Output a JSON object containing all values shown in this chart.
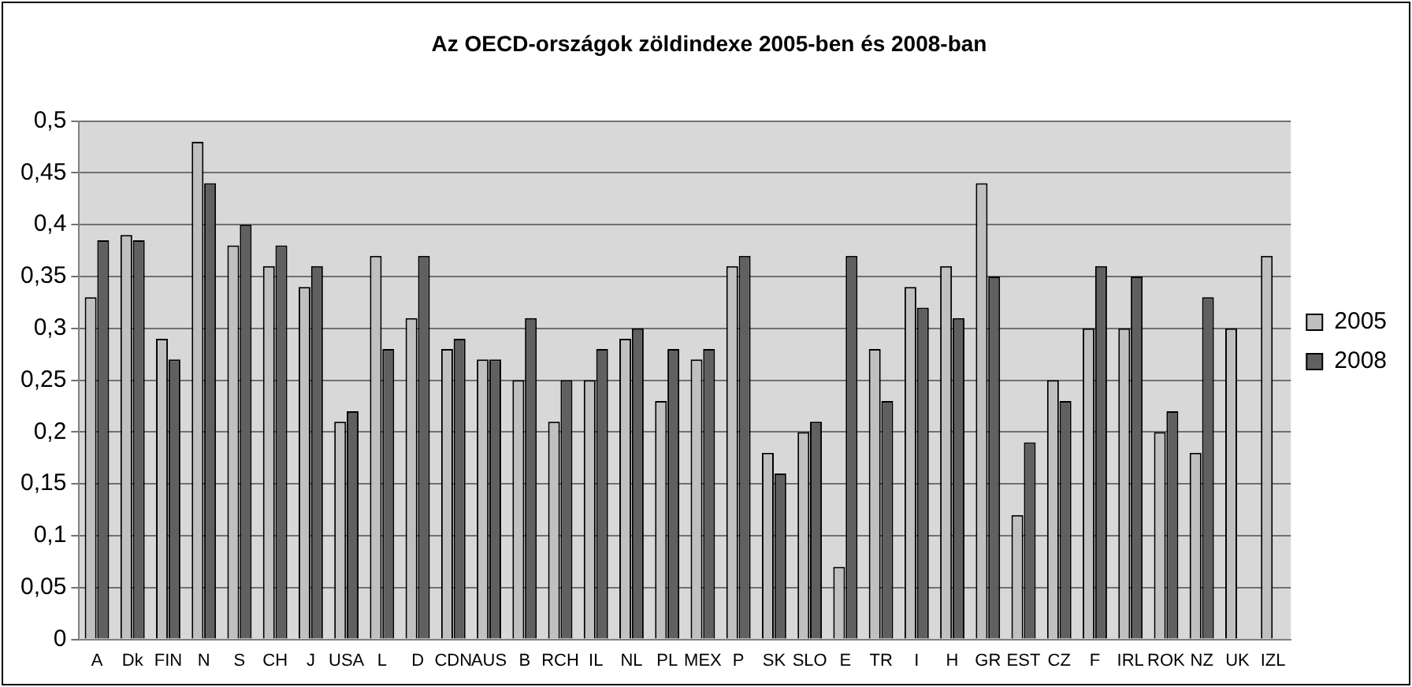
{
  "chart_data": {
    "type": "bar",
    "title": "Az OECD-országok zöldindexe 2005-ben és 2008-ban",
    "categories": [
      "A",
      "Dk",
      "FIN",
      "N",
      "S",
      "CH",
      "J",
      "USA",
      "L",
      "D",
      "CDN",
      "AUS",
      "B",
      "RCH",
      "IL",
      "NL",
      "PL",
      "MEX",
      "P",
      "SK",
      "SLO",
      "E",
      "TR",
      "I",
      "H",
      "GR",
      "EST",
      "CZ",
      "F",
      "IRL",
      "ROK",
      "NZ",
      "UK",
      "IZL"
    ],
    "series": [
      {
        "name": "2005",
        "color": "#c0c0c0",
        "values": [
          0.33,
          0.39,
          0.29,
          0.48,
          0.38,
          0.36,
          0.34,
          0.21,
          0.37,
          0.31,
          0.28,
          0.27,
          0.25,
          0.21,
          0.25,
          0.29,
          0.23,
          0.27,
          0.36,
          0.18,
          0.2,
          0.07,
          0.28,
          0.34,
          0.36,
          0.44,
          0.12,
          0.25,
          0.3,
          0.3,
          0.2,
          0.18,
          0.3,
          0.37
        ]
      },
      {
        "name": "2008",
        "color": "#606060",
        "values": [
          0.385,
          0.385,
          0.27,
          0.44,
          0.4,
          0.38,
          0.36,
          0.22,
          0.28,
          0.37,
          0.29,
          0.27,
          0.31,
          0.25,
          0.28,
          0.3,
          0.28,
          0.28,
          0.37,
          0.16,
          0.21,
          0.37,
          0.23,
          0.32,
          0.31,
          0.35,
          0.19,
          0.23,
          0.36,
          0.35,
          0.22,
          0.33,
          null,
          null
        ]
      }
    ],
    "ylim": [
      0,
      0.5
    ],
    "yticks": [
      {
        "value": 0,
        "label": "0"
      },
      {
        "value": 0.05,
        "label": "0,05"
      },
      {
        "value": 0.1,
        "label": "0,1"
      },
      {
        "value": 0.15,
        "label": "0,15"
      },
      {
        "value": 0.2,
        "label": "0,2"
      },
      {
        "value": 0.25,
        "label": "0,25"
      },
      {
        "value": 0.3,
        "label": "0,3"
      },
      {
        "value": 0.35,
        "label": "0,35"
      },
      {
        "value": 0.4,
        "label": "0,4"
      },
      {
        "value": 0.45,
        "label": "0,45"
      },
      {
        "value": 0.5,
        "label": "0,5"
      }
    ],
    "grid": "y",
    "legend": "right"
  }
}
